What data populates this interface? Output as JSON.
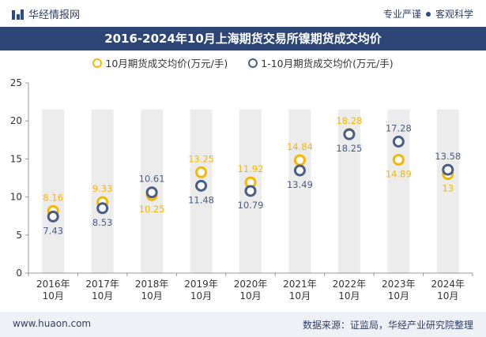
{
  "header": {
    "site_name": "华经情报网",
    "tag_left": "专业严谨",
    "tag_right": "客观科学"
  },
  "footer": {
    "url": "www.huaon.com",
    "source": "数据来源：证监局，华经产业研究院整理"
  },
  "colors": {
    "series1": "#f5b800",
    "series2": "#4a5d85",
    "title_bg": "#2d4675",
    "column_bg": "#ececec"
  },
  "chart_data": {
    "type": "scatter",
    "title": "2016-2024年10月上海期货交易所镍期货成交均价",
    "categories": [
      "2016年\n10月",
      "2017年\n10月",
      "2018年\n10月",
      "2019年\n10月",
      "2020年\n10月",
      "2021年\n10月",
      "2022年\n10月",
      "2023年\n10月",
      "2024年\n10月"
    ],
    "ylim": [
      0,
      25
    ],
    "yticks": [
      0,
      5,
      10,
      15,
      20,
      25
    ],
    "xlabel": "",
    "ylabel": "",
    "grid": false,
    "legend_position": "top",
    "series": [
      {
        "name": "10月期货成交均价(万元/手)",
        "values": [
          8.16,
          9.33,
          10.25,
          13.25,
          11.92,
          14.84,
          18.28,
          14.89,
          13
        ],
        "labels": [
          "8.16",
          "9.33",
          "10.25",
          "13.25",
          "11.92",
          "14.84",
          "18.28",
          "14.89",
          "13"
        ]
      },
      {
        "name": "1-10月期货成交均价(万元/手)",
        "values": [
          7.43,
          8.53,
          10.61,
          11.48,
          10.79,
          13.49,
          18.25,
          17.28,
          13.58
        ],
        "labels": [
          "7.43",
          "8.53",
          "10.61",
          "11.48",
          "10.79",
          "13.49",
          "18.25",
          "17.28",
          "13.58"
        ]
      }
    ]
  }
}
